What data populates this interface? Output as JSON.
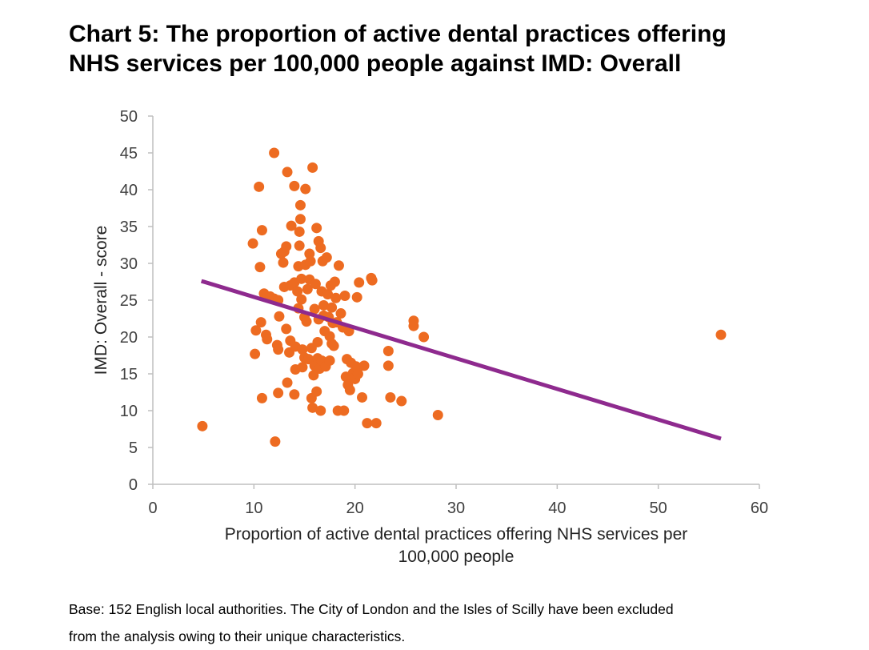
{
  "title_lines": [
    "Chart 5: The proportion of active dental practices offering",
    "NHS services per 100,000 people against IMD: Overall"
  ],
  "footnote_lines": [
    "Base: 152 English local authorities. The City of London and the Isles of Scilly have been excluded",
    "from the analysis owing to their unique characteristics."
  ],
  "chart_data": {
    "type": "scatter",
    "title": "Chart 5: The proportion of active dental practices offering NHS services per 100,000 people against IMD: Overall",
    "xlabel_lines": [
      "Proportion of active dental practices offering NHS services per",
      "100,000 people"
    ],
    "ylabel": "IMD: Overall - score",
    "xlim": [
      0,
      60
    ],
    "ylim": [
      0,
      50
    ],
    "xticks": [
      "0",
      "10",
      "20",
      "30",
      "40",
      "50",
      "60"
    ],
    "yticks": [
      "0",
      "5",
      "10",
      "15",
      "20",
      "25",
      "30",
      "35",
      "40",
      "45",
      "50"
    ],
    "grid": false,
    "marker_color": "#ED6B21",
    "trendline_color": "#8E2A8E",
    "trendline": {
      "x": [
        4.8,
        56.2
      ],
      "y": [
        27.6,
        6.2
      ]
    },
    "points": [
      [
        4.9,
        7.9
      ],
      [
        9.9,
        32.7
      ],
      [
        10.1,
        17.7
      ],
      [
        10.2,
        20.9
      ],
      [
        10.5,
        40.4
      ],
      [
        10.6,
        29.5
      ],
      [
        10.7,
        22.0
      ],
      [
        10.8,
        34.5
      ],
      [
        10.8,
        11.7
      ],
      [
        11.0,
        25.9
      ],
      [
        11.2,
        20.3
      ],
      [
        11.3,
        19.7
      ],
      [
        11.6,
        25.5
      ],
      [
        12.0,
        25.2
      ],
      [
        12.0,
        45.0
      ],
      [
        12.1,
        5.8
      ],
      [
        12.3,
        18.9
      ],
      [
        12.4,
        18.3
      ],
      [
        12.4,
        25.0
      ],
      [
        12.4,
        12.4
      ],
      [
        12.5,
        22.8
      ],
      [
        12.7,
        31.3
      ],
      [
        12.9,
        30.1
      ],
      [
        13.0,
        26.8
      ],
      [
        13.0,
        31.6
      ],
      [
        13.2,
        32.3
      ],
      [
        13.2,
        21.1
      ],
      [
        13.3,
        42.4
      ],
      [
        13.3,
        13.8
      ],
      [
        13.5,
        17.9
      ],
      [
        13.6,
        19.5
      ],
      [
        13.6,
        27.0
      ],
      [
        13.7,
        35.1
      ],
      [
        14.0,
        40.5
      ],
      [
        14.0,
        12.2
      ],
      [
        14.0,
        27.4
      ],
      [
        14.1,
        18.7
      ],
      [
        14.1,
        15.6
      ],
      [
        14.3,
        26.2
      ],
      [
        14.4,
        29.6
      ],
      [
        14.4,
        23.9
      ],
      [
        14.5,
        34.3
      ],
      [
        14.5,
        32.4
      ],
      [
        14.6,
        37.9
      ],
      [
        14.6,
        36.0
      ],
      [
        14.7,
        27.9
      ],
      [
        14.7,
        25.1
      ],
      [
        14.8,
        15.9
      ],
      [
        14.8,
        18.3
      ],
      [
        15.0,
        22.7
      ],
      [
        15.0,
        17.2
      ],
      [
        15.1,
        40.1
      ],
      [
        15.1,
        29.8
      ],
      [
        15.2,
        22.1
      ],
      [
        15.3,
        26.5
      ],
      [
        15.4,
        17.0
      ],
      [
        15.5,
        27.8
      ],
      [
        15.5,
        31.3
      ],
      [
        15.6,
        30.3
      ],
      [
        15.7,
        18.5
      ],
      [
        15.7,
        11.7
      ],
      [
        15.8,
        10.4
      ],
      [
        15.8,
        43.0
      ],
      [
        15.9,
        14.8
      ],
      [
        16.0,
        23.8
      ],
      [
        16.0,
        16.1
      ],
      [
        16.1,
        27.2
      ],
      [
        16.2,
        34.8
      ],
      [
        16.2,
        12.6
      ],
      [
        16.3,
        19.3
      ],
      [
        16.3,
        17.1
      ],
      [
        16.4,
        33.0
      ],
      [
        16.4,
        22.4
      ],
      [
        16.5,
        15.7
      ],
      [
        16.6,
        10.0
      ],
      [
        16.6,
        32.1
      ],
      [
        16.7,
        26.2
      ],
      [
        16.7,
        16.8
      ],
      [
        16.8,
        30.3
      ],
      [
        16.9,
        24.3
      ],
      [
        16.9,
        22.9
      ],
      [
        17.0,
        20.8
      ],
      [
        17.1,
        16.0
      ],
      [
        17.2,
        30.8
      ],
      [
        17.3,
        25.8
      ],
      [
        17.4,
        22.7
      ],
      [
        17.5,
        20.1
      ],
      [
        17.5,
        16.8
      ],
      [
        17.6,
        27.0
      ],
      [
        17.7,
        19.1
      ],
      [
        17.7,
        24.0
      ],
      [
        17.8,
        21.9
      ],
      [
        17.9,
        18.8
      ],
      [
        18.0,
        27.5
      ],
      [
        18.1,
        25.3
      ],
      [
        18.2,
        22.0
      ],
      [
        18.3,
        10.0
      ],
      [
        18.4,
        29.7
      ],
      [
        18.6,
        23.2
      ],
      [
        18.8,
        21.3
      ],
      [
        18.9,
        10.0
      ],
      [
        19.0,
        25.6
      ],
      [
        19.1,
        14.6
      ],
      [
        19.2,
        17.0
      ],
      [
        19.3,
        13.5
      ],
      [
        19.4,
        20.8
      ],
      [
        19.5,
        12.8
      ],
      [
        19.6,
        16.5
      ],
      [
        19.8,
        15.1
      ],
      [
        19.9,
        14.4
      ],
      [
        20.0,
        14.3
      ],
      [
        20.1,
        16.0
      ],
      [
        20.2,
        25.4
      ],
      [
        20.3,
        15.0
      ],
      [
        20.4,
        27.4
      ],
      [
        20.7,
        11.8
      ],
      [
        20.9,
        16.1
      ],
      [
        21.2,
        8.3
      ],
      [
        21.6,
        28.0
      ],
      [
        21.7,
        27.7
      ],
      [
        22.1,
        8.3
      ],
      [
        23.3,
        18.1
      ],
      [
        23.3,
        16.1
      ],
      [
        23.5,
        11.8
      ],
      [
        24.6,
        11.3
      ],
      [
        25.8,
        22.2
      ],
      [
        25.8,
        21.5
      ],
      [
        26.8,
        20.0
      ],
      [
        28.2,
        9.4
      ],
      [
        56.2,
        20.3
      ]
    ]
  }
}
